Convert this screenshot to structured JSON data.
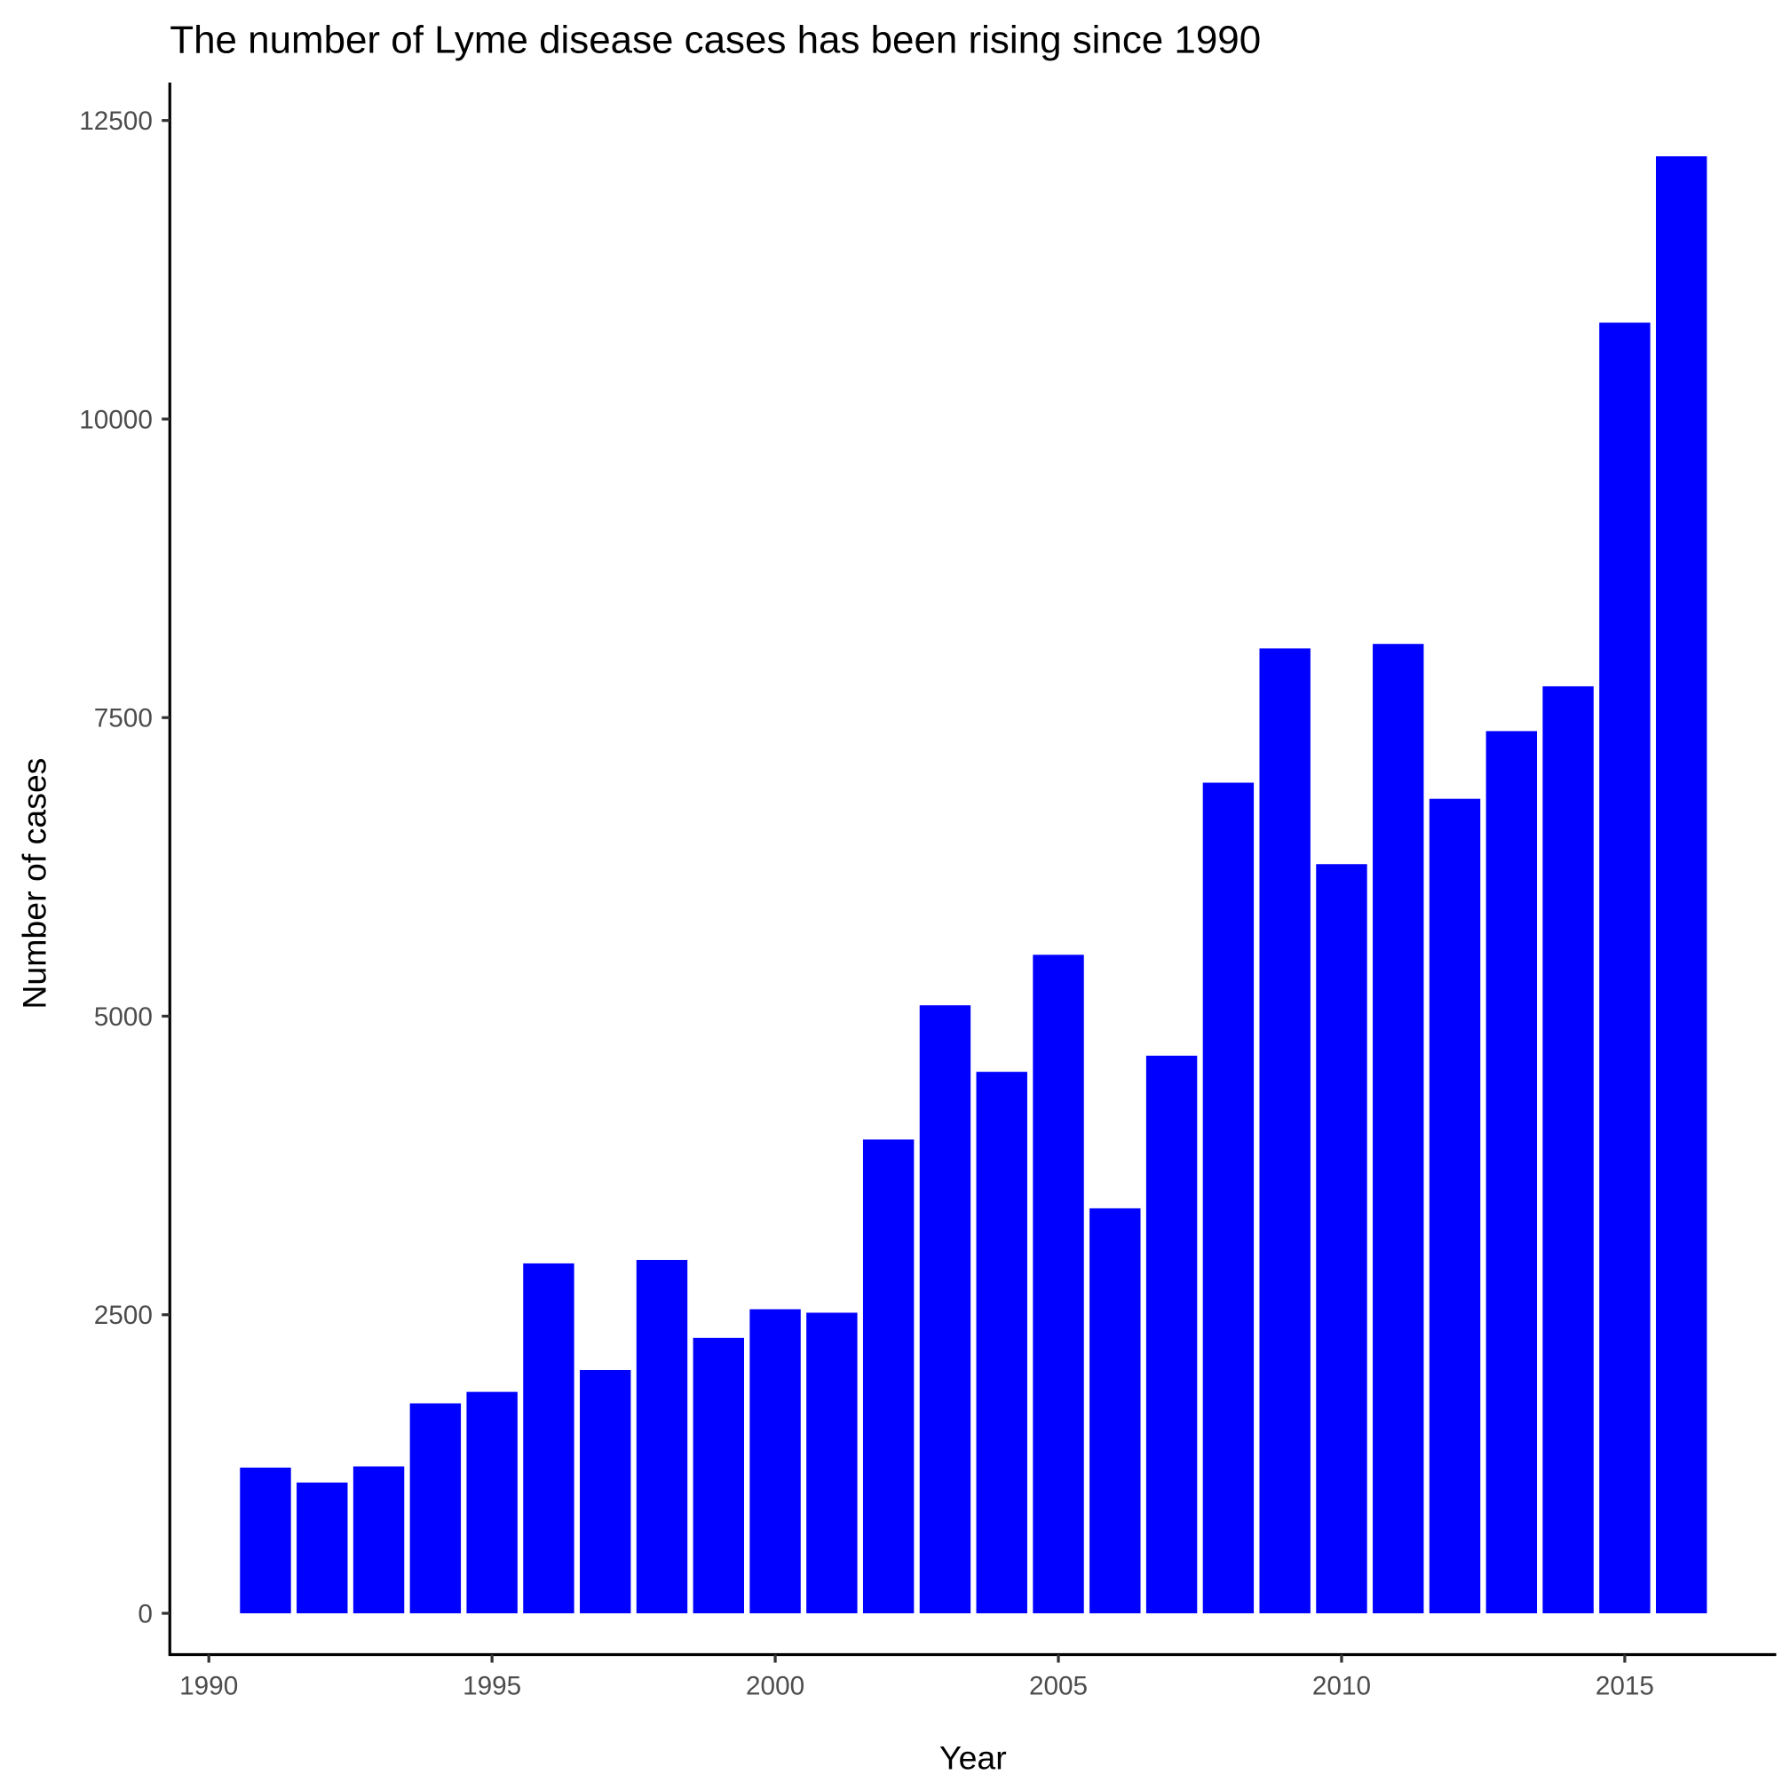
{
  "chart_data": {
    "type": "bar",
    "title": "The number of Lyme disease cases has been rising since 1990",
    "xlabel": "Year",
    "ylabel": "Number of cases",
    "categories": [
      1991,
      1992,
      1993,
      1994,
      1995,
      1996,
      1997,
      1998,
      1999,
      2000,
      2001,
      2002,
      2003,
      2004,
      2005,
      2006,
      2007,
      2008,
      2009,
      2010,
      2011,
      2012,
      2013,
      2014,
      2015,
      2016
    ],
    "values": [
      1220,
      1095,
      1230,
      1758,
      1854,
      2930,
      2037,
      2959,
      2306,
      2546,
      2517,
      3967,
      5091,
      4534,
      5514,
      3391,
      4669,
      6955,
      8079,
      6273,
      8117,
      6820,
      7387,
      7762,
      10807,
      12200
    ],
    "xlim": [
      1989.3,
      2017.5
    ],
    "ylim": [
      -625,
      12800
    ],
    "xticks": [
      "1990",
      "1995",
      "2000",
      "2005",
      "2010",
      "2015"
    ],
    "yticks": [
      "0",
      "2500",
      "5000",
      "7500",
      "10000",
      "12500"
    ],
    "bar_color": "#0000ff",
    "grid": false
  }
}
